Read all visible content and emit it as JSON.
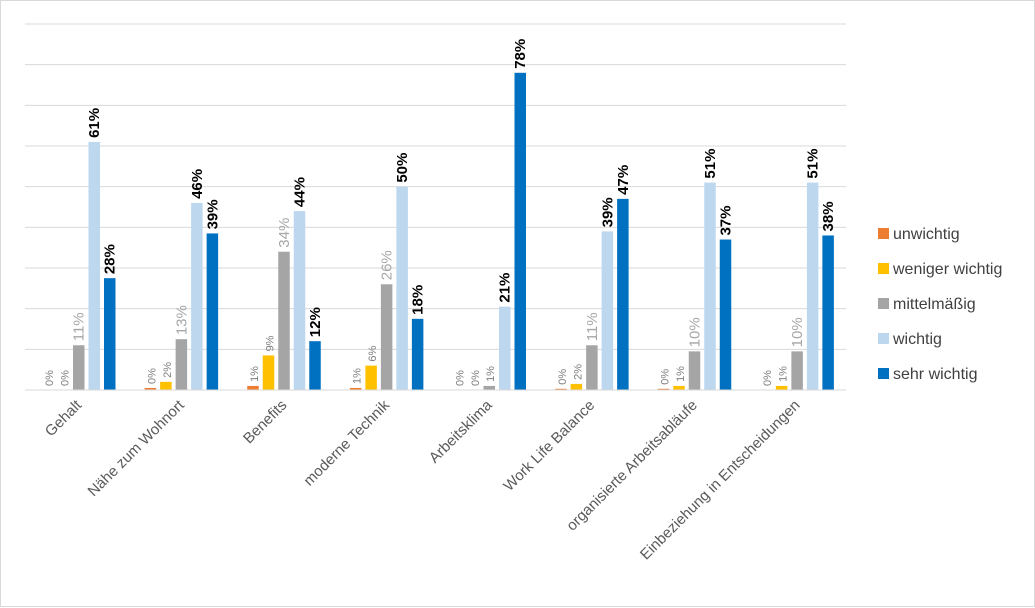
{
  "chart_data": {
    "type": "bar",
    "title": "",
    "xlabel": "",
    "ylabel": "",
    "ylim": [
      0,
      90
    ],
    "grid": true,
    "legend_position": "right",
    "categories": [
      "Gehalt",
      "Nähe zum Wohnort",
      "Benefits",
      "moderne Technik",
      "Arbeitsklima",
      "Work Life Balance",
      "organisierte Arbeitsabläufe",
      "Einbeziehung in Entscheidungen"
    ],
    "series": [
      {
        "name": "unwichtig",
        "color": "#ed7d31",
        "values": [
          0,
          0.5,
          1,
          0.5,
          0,
          0.3,
          0.3,
          0
        ],
        "labels": [
          "0%",
          "0%",
          "1%",
          "1%",
          "0%",
          "0%",
          "0%",
          "0%"
        ]
      },
      {
        "name": "weniger wichtig",
        "color": "#ffc000",
        "values": [
          0,
          2,
          8.5,
          6,
          0,
          1.5,
          1,
          1
        ],
        "labels": [
          "0%",
          "2%",
          "9%",
          "6%",
          "0%",
          "2%",
          "1%",
          "1%"
        ]
      },
      {
        "name": "mittelmäßig",
        "color": "#a5a5a5",
        "values": [
          11,
          12.5,
          34,
          26,
          1,
          11,
          9.5,
          9.5
        ],
        "labels": [
          "11%",
          "13%",
          "34%",
          "26%",
          "1%",
          "11%",
          "10%",
          "10%"
        ]
      },
      {
        "name": "wichtig",
        "color": "#bdd7ee",
        "values": [
          61,
          46,
          44,
          50,
          20.5,
          39,
          51,
          51
        ],
        "labels": [
          "61%",
          "46%",
          "44%",
          "50%",
          "21%",
          "39%",
          "51%",
          "51%"
        ]
      },
      {
        "name": "sehr wichtig",
        "color": "#0070c0",
        "values": [
          27.5,
          38.5,
          12,
          17.5,
          78,
          47,
          37,
          38
        ],
        "labels": [
          "28%",
          "39%",
          "12%",
          "18%",
          "78%",
          "47%",
          "37%",
          "38%"
        ]
      }
    ]
  }
}
